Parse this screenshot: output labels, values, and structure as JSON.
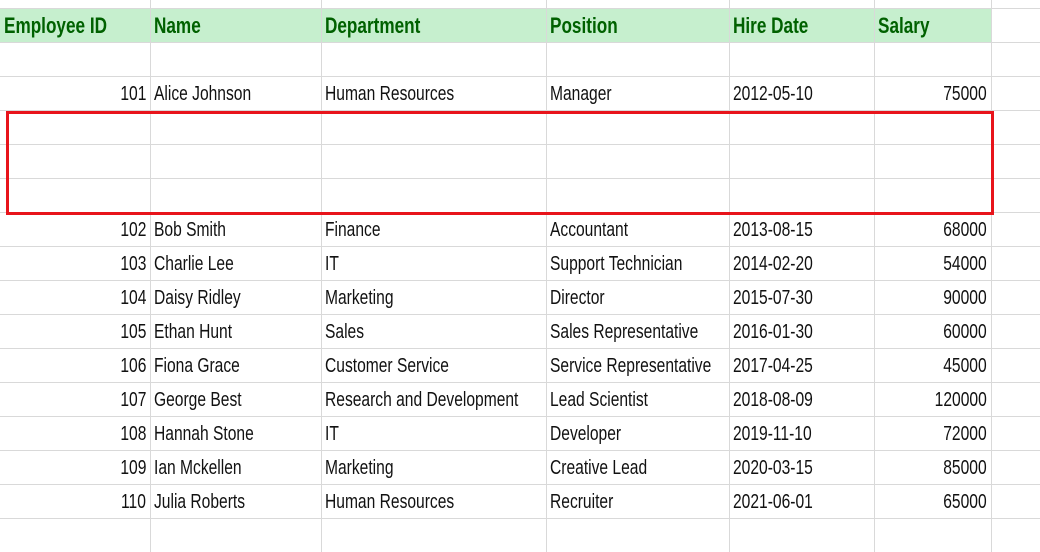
{
  "table": {
    "header": [
      "Employee ID",
      "Name",
      "Department",
      "Position",
      "Hire Date",
      "Salary"
    ],
    "rows": [
      [
        101,
        "Alice Johnson",
        "Human Resources",
        "Manager",
        "2012-05-10",
        75000
      ],
      [
        102,
        "Bob Smith",
        "Finance",
        "Accountant",
        "2013-08-15",
        68000
      ],
      [
        103,
        "Charlie Lee",
        "IT",
        "Support Technician",
        "2014-02-20",
        54000
      ],
      [
        104,
        "Daisy Ridley",
        "Marketing",
        "Director",
        "2015-07-30",
        90000
      ],
      [
        105,
        "Ethan Hunt",
        "Sales",
        "Sales Representative",
        "2016-01-30",
        60000
      ],
      [
        106,
        "Fiona Grace",
        "Customer Service",
        "Service Representative",
        "2017-04-25",
        45000
      ],
      [
        107,
        "George Best",
        "Research and Development",
        "Lead Scientist",
        "2018-08-09",
        120000
      ],
      [
        108,
        "Hannah Stone",
        "IT",
        "Developer",
        "2019-11-10",
        72000
      ],
      [
        109,
        "Ian Mckellen",
        "Marketing",
        "Creative Lead",
        "2020-03-15",
        85000
      ],
      [
        110,
        "Julia Roberts",
        "Human Resources",
        "Recruiter",
        "2021-06-01",
        65000
      ]
    ]
  }
}
